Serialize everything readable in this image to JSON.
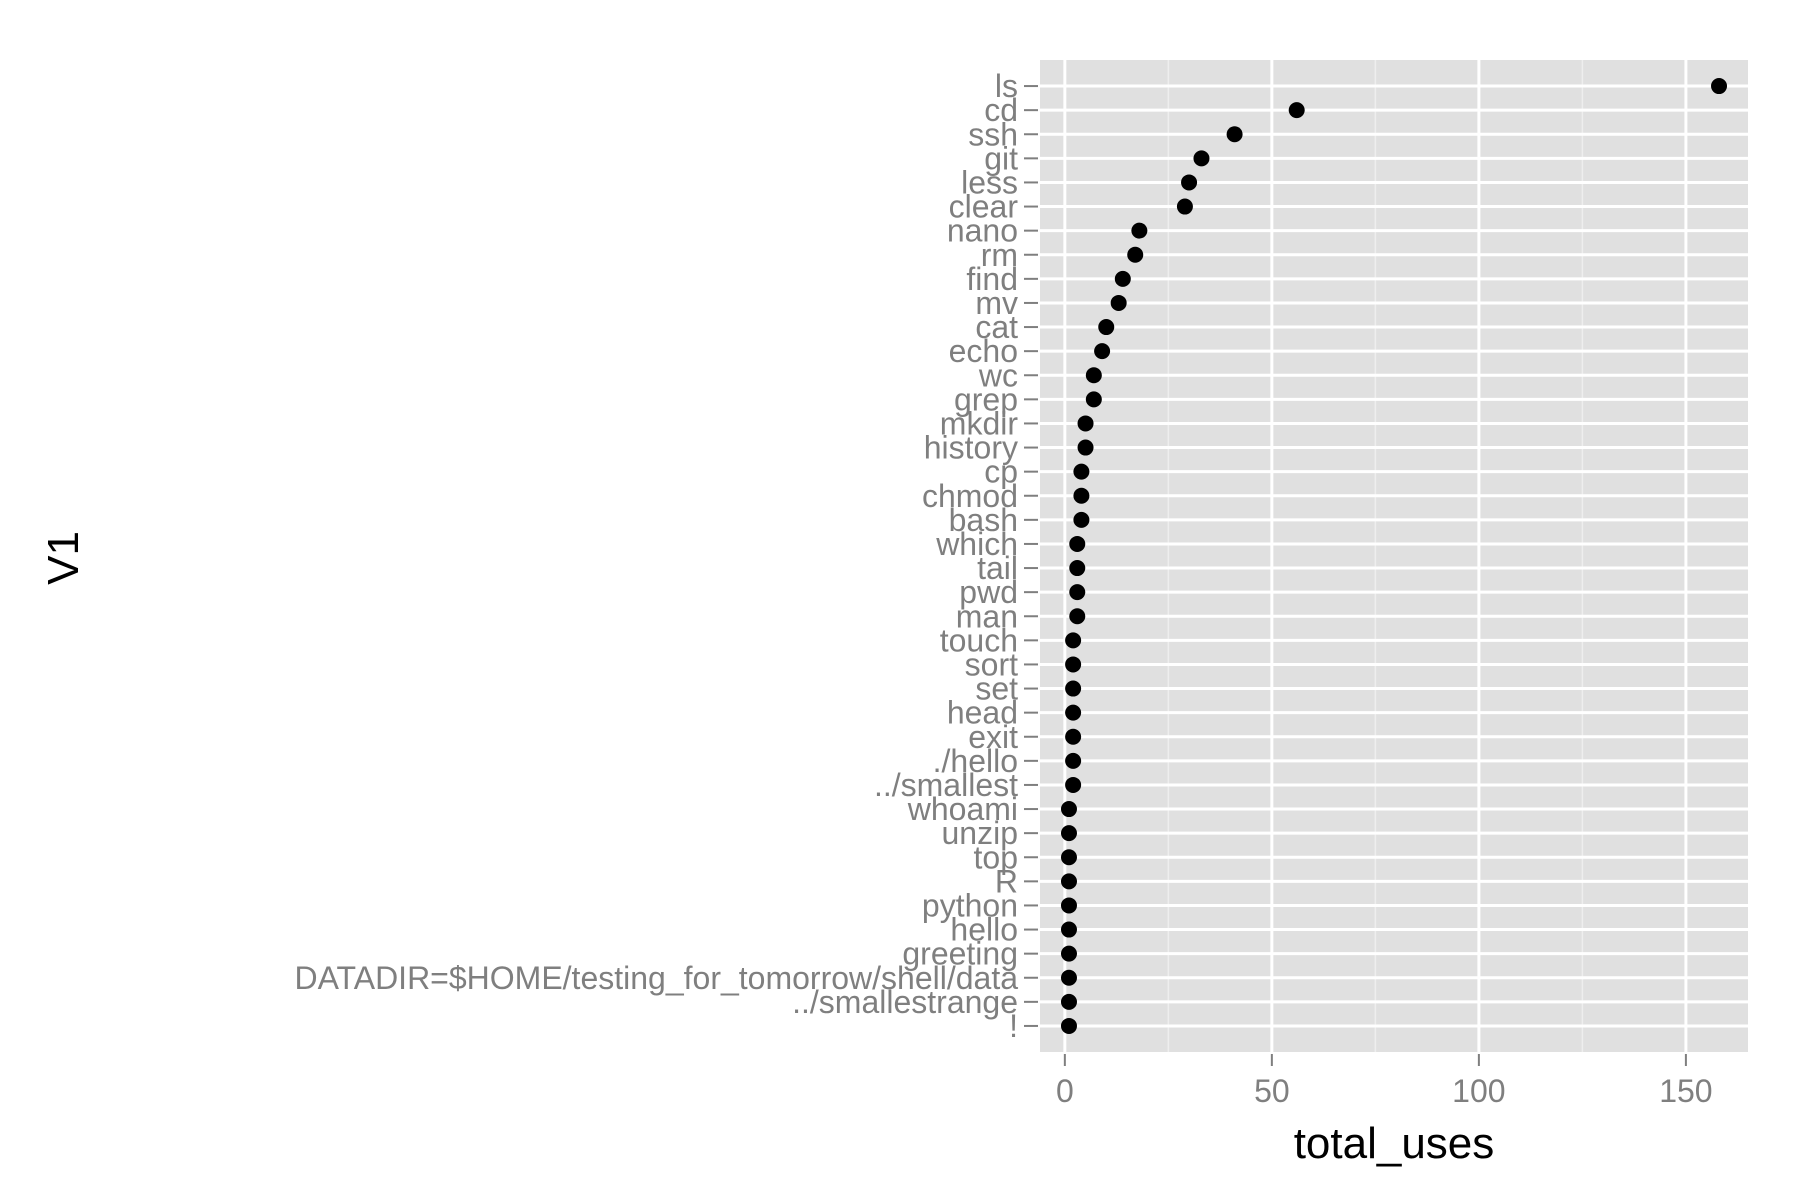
{
  "chart_data": {
    "type": "scatter",
    "title": "",
    "xlabel": "total_uses",
    "ylabel": "V1",
    "xlim": [
      -6,
      165
    ],
    "x_ticks": [
      0,
      50,
      100,
      150
    ],
    "x_tick_labels": [
      "0",
      "50",
      "100",
      "150"
    ],
    "grid": true,
    "legend": "none",
    "categories": [
      "ls",
      "cd",
      "ssh",
      "git",
      "less",
      "clear",
      "nano",
      "rm",
      "find",
      "mv",
      "cat",
      "echo",
      "wc",
      "grep",
      "mkdir",
      "history",
      "cp",
      "chmod",
      "bash",
      "which",
      "tail",
      "pwd",
      "man",
      "touch",
      "sort",
      "set",
      "head",
      "exit",
      "./hello",
      "../smallest",
      "whoami",
      "unzip",
      "top",
      "R",
      "python",
      "hello",
      "greeting",
      "DATADIR=$HOME/testing_for_tomorrow/shell/data",
      "../smallestrange",
      "!"
    ],
    "values": [
      158,
      56,
      41,
      33,
      30,
      29,
      18,
      17,
      14,
      13,
      10,
      9,
      7,
      7,
      5,
      5,
      4,
      4,
      4,
      3,
      3,
      3,
      3,
      2,
      2,
      2,
      2,
      2,
      2,
      2,
      1,
      1,
      1,
      1,
      1,
      1,
      1,
      1,
      1,
      1
    ]
  },
  "colors": {
    "panel": "#e0e0e0",
    "grid_major": "#ffffff",
    "grid_minor": "#eeeeee",
    "point": "#000000",
    "tick_text": "#7f7f7f",
    "tick_mark": "#7f7f7f",
    "axis_title": "#000000"
  }
}
